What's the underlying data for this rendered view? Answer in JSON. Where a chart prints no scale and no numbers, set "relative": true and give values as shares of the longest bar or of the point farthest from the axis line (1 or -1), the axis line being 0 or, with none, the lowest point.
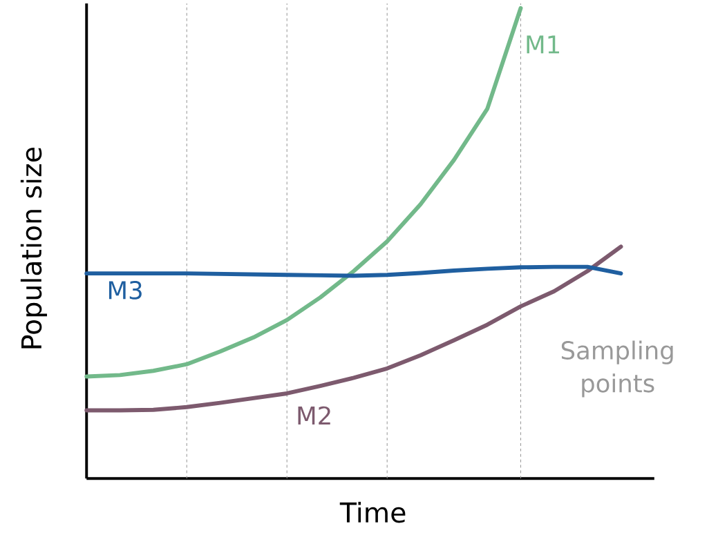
{
  "chart_data": {
    "type": "line",
    "relative": true,
    "xlabel": "Time",
    "ylabel": "Population size",
    "tick_labels": false,
    "categories": [
      null,
      null,
      null,
      null,
      null,
      null,
      null,
      null,
      null,
      null,
      null,
      null,
      null,
      null,
      null,
      null,
      null
    ],
    "series": [
      {
        "name": "M1",
        "color": "#72b98a",
        "values": [
          0.217,
          0.22,
          0.229,
          0.243,
          0.27,
          0.3,
          0.337,
          0.385,
          0.441,
          0.504,
          0.583,
          0.677,
          0.786,
          1.0,
          null,
          null,
          null
        ]
      },
      {
        "name": "M2",
        "color": "#7d5a6e",
        "values": [
          0.145,
          0.145,
          0.146,
          0.152,
          0.161,
          0.171,
          0.181,
          0.197,
          0.214,
          0.234,
          0.262,
          0.294,
          0.327,
          0.366,
          0.398,
          0.441,
          0.493
        ]
      },
      {
        "name": "M3",
        "color": "#1f5fa0",
        "values": [
          0.436,
          0.436,
          0.436,
          0.436,
          0.435,
          0.434,
          0.433,
          0.432,
          0.431,
          0.433,
          0.437,
          0.442,
          0.446,
          0.449,
          0.45,
          0.45,
          0.436
        ]
      }
    ],
    "grid": "x",
    "annotations": [
      "Sampling",
      "points"
    ]
  }
}
